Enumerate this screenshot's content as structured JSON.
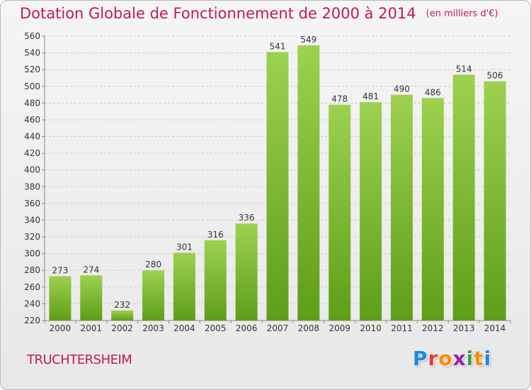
{
  "header": {
    "title": "Dotation Globale de Fonctionnement de 2000 à 2014",
    "unit": "(en milliers d'€)"
  },
  "footer": {
    "commune": "TRUCHTERSHEIM",
    "logo_letters": [
      "P",
      "r",
      "o",
      "x",
      "i",
      "t",
      "i"
    ],
    "logo_colors": [
      "#1e88e5",
      "#e53935",
      "#fb8c00",
      "#8e24aa",
      "#43a047",
      "#fb8c00",
      "#1e88e5"
    ]
  },
  "colors": {
    "title": "#c2185b",
    "bar_light": "#9dd150",
    "bar_dark": "#5e9e18",
    "grid": "#c8c8c8"
  },
  "chart_data": {
    "type": "bar",
    "title": "Dotation Globale de Fonctionnement de 2000 à 2014",
    "subtitle": "(en milliers d'€)",
    "categories": [
      "2000",
      "2001",
      "2002",
      "2003",
      "2004",
      "2005",
      "2006",
      "2007",
      "2008",
      "2009",
      "2010",
      "2011",
      "2012",
      "2013",
      "2014"
    ],
    "values": [
      273,
      274,
      232,
      280,
      301,
      316,
      336,
      541,
      549,
      478,
      481,
      490,
      486,
      514,
      506
    ],
    "ylim": [
      220,
      560
    ],
    "yticks": [
      220,
      240,
      260,
      280,
      300,
      320,
      340,
      360,
      380,
      400,
      420,
      440,
      460,
      480,
      500,
      520,
      540,
      560
    ],
    "grid": true,
    "legend": "none"
  }
}
